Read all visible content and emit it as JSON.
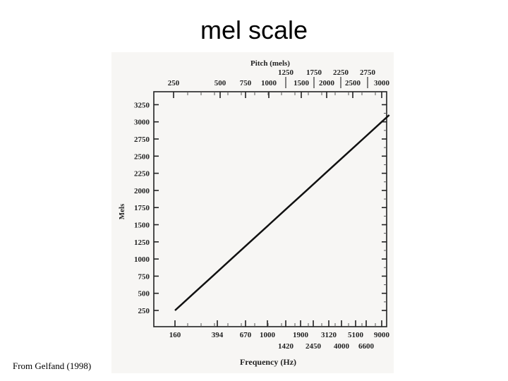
{
  "slide": {
    "title": "mel scale",
    "credit": "From Gelfand (1998)"
  },
  "chart_data": {
    "type": "line",
    "top_axis_title": "Pitch (mels)",
    "top_ticks_upper": [
      "1250",
      "1750",
      "2250",
      "2750"
    ],
    "top_ticks_lower": [
      "250",
      "500",
      "750",
      "1000",
      "1500",
      "2000",
      "2500",
      "3000"
    ],
    "ylabel": "Mels",
    "y_ticks": [
      "250",
      "500",
      "750",
      "1000",
      "1250",
      "1500",
      "1750",
      "2000",
      "2250",
      "2500",
      "2750",
      "3000",
      "3250"
    ],
    "xlabel": "Frequency (Hz)",
    "x_ticks_upper": [
      "160",
      "394",
      "670",
      "1000",
      "1900",
      "3120",
      "5100",
      "9000"
    ],
    "x_ticks_lower": [
      "1420",
      "2450",
      "4000",
      "6600"
    ],
    "series": [
      {
        "values": [
          [
            250,
            250
          ],
          [
            500,
            500
          ],
          [
            750,
            750
          ],
          [
            1000,
            1000
          ],
          [
            1250,
            1250
          ],
          [
            1500,
            1500
          ],
          [
            1750,
            1750
          ],
          [
            2000,
            2000
          ],
          [
            2250,
            2250
          ],
          [
            2500,
            2500
          ],
          [
            2750,
            2750
          ],
          [
            3000,
            3000
          ],
          [
            3100,
            3100
          ]
        ]
      }
    ],
    "ylim": [
      0,
      3400
    ],
    "grid": false,
    "line_color": "#111111"
  }
}
